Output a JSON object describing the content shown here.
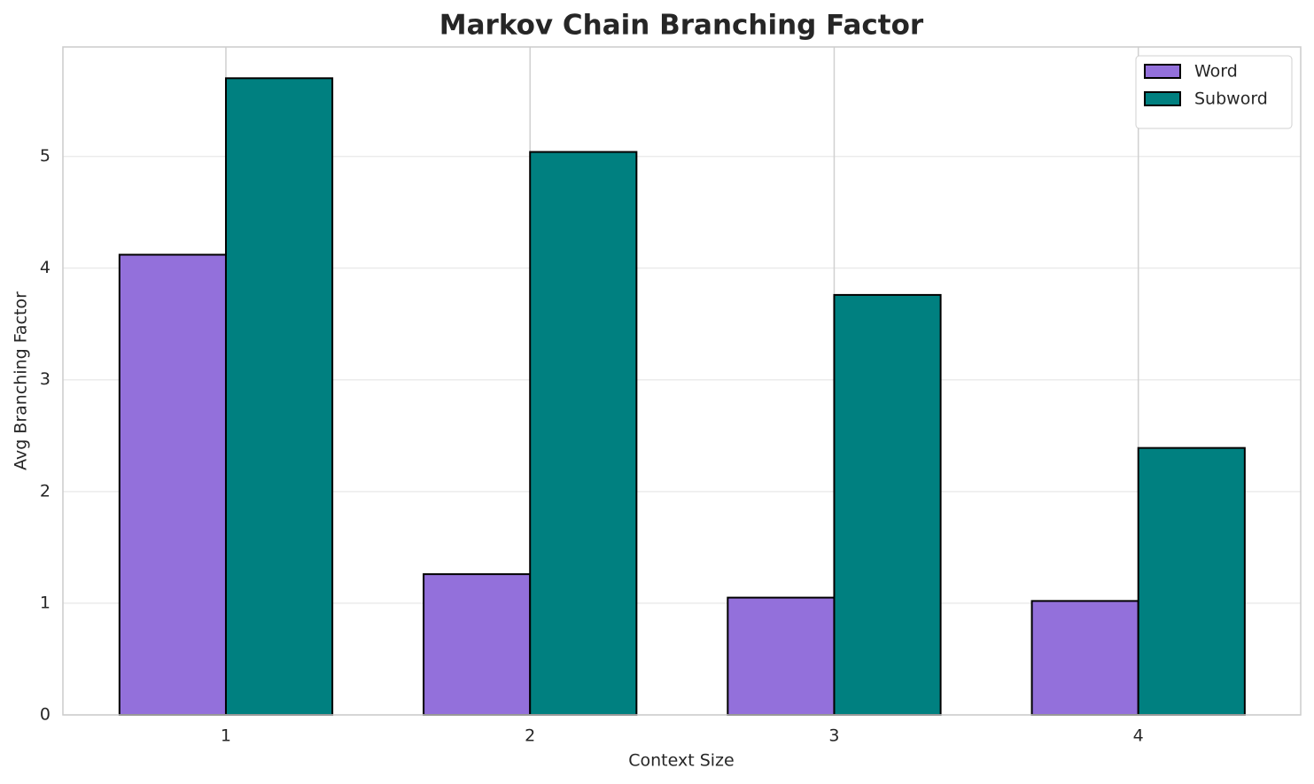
{
  "chart_data": {
    "type": "bar",
    "title": "Markov Chain Branching Factor",
    "x_label": "Context Size",
    "y_label": "Avg Branching Factor",
    "categories": [
      "1",
      "2",
      "3",
      "4"
    ],
    "series": [
      {
        "name": "Word",
        "color": "#9370db",
        "values": [
          4.12,
          1.26,
          1.05,
          1.02
        ]
      },
      {
        "name": "Subword",
        "color": "#008080",
        "values": [
          5.7,
          5.04,
          3.76,
          2.39
        ]
      }
    ],
    "ylim": [
      0,
      5.98
    ],
    "yticks": [
      0,
      1,
      2,
      3,
      4,
      5
    ],
    "grid": true,
    "legend": "upper right"
  }
}
